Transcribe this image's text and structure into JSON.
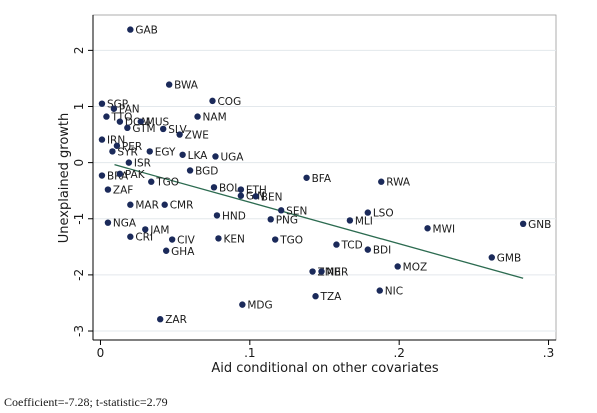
{
  "chart_data": {
    "type": "scatter",
    "x_label": "Aid conditional on other covariates",
    "y_label": "Unexplained growth",
    "note": "Coefficient=-7.28; t-statistic=2.79",
    "xlim": [
      -0.005,
      0.305
    ],
    "ylim": [
      -3.16,
      2.63
    ],
    "xticks": [
      0,
      {
        "value": 0.1,
        "label": ".1"
      },
      {
        "value": 0.2,
        "label": ".2"
      },
      {
        "value": 0.3,
        "label": ".3"
      }
    ],
    "yticks": [
      2,
      1,
      0,
      -1,
      -2,
      -3
    ],
    "grid": true,
    "color": "#1b2a5a",
    "line_color": "#2c6b50",
    "labels": [
      "GAB",
      "BWA",
      "COG",
      "SGP",
      "PAN",
      "NAM",
      "TTO",
      "DOM",
      "MUS",
      "GTM",
      "SLV",
      "ZWE",
      "IRN",
      "PER",
      "SYR",
      "EGY",
      "LKA",
      "UGA",
      "ISR",
      "BGD",
      "BRA",
      "PAK",
      "TGO",
      "BFA",
      "RWA",
      "BOL",
      "ETH",
      "GIN",
      "BEN",
      "ZAF",
      "MAR",
      "CMR",
      "SEN",
      "LSO",
      "HND",
      "PNG",
      "MLI",
      "GNB",
      "MWI",
      "NGA",
      "JAM",
      "CRI",
      "CIV",
      "KEN",
      "TGO",
      "TCD",
      "BDI",
      "GHA",
      "GMB",
      "MOZ",
      "ZMB",
      "NER",
      "NIC",
      "TZA",
      "MDG",
      "ZAR"
    ],
    "x": [
      0.02,
      0.046,
      0.075,
      0.001,
      0.009,
      0.065,
      0.004,
      0.013,
      0.027,
      0.018,
      0.042,
      0.053,
      0.001,
      0.011,
      0.008,
      0.033,
      0.055,
      0.077,
      0.019,
      0.06,
      0.001,
      0.013,
      0.034,
      0.138,
      0.188,
      0.076,
      0.094,
      0.094,
      0.104,
      0.005,
      0.02,
      0.043,
      0.121,
      0.179,
      0.078,
      0.114,
      0.167,
      0.283,
      0.219,
      0.005,
      0.03,
      0.02,
      0.048,
      0.079,
      0.117,
      0.158,
      0.179,
      0.044,
      0.262,
      0.199,
      0.142,
      0.148,
      0.187,
      0.144,
      0.095,
      0.04
    ],
    "y": [
      2.37,
      1.39,
      1.1,
      1.05,
      0.96,
      0.82,
      0.82,
      0.73,
      0.73,
      0.62,
      0.6,
      0.5,
      0.41,
      0.3,
      0.2,
      0.2,
      0.14,
      0.11,
      0.0,
      -0.14,
      -0.23,
      -0.2,
      -0.34,
      -0.27,
      -0.34,
      -0.44,
      -0.48,
      -0.59,
      -0.6,
      -0.48,
      -0.75,
      -0.75,
      -0.85,
      -0.89,
      -0.94,
      -1.01,
      -1.03,
      -1.09,
      -1.17,
      -1.07,
      -1.19,
      -1.32,
      -1.37,
      -1.35,
      -1.37,
      -1.46,
      -1.55,
      -1.57,
      -1.69,
      -1.85,
      -1.94,
      -1.94,
      -2.28,
      -2.38,
      -2.53,
      -2.79
    ],
    "fit_line": {
      "x": [
        0.0094,
        0.283
      ],
      "y": [
        -0.036,
        -2.06
      ]
    }
  }
}
